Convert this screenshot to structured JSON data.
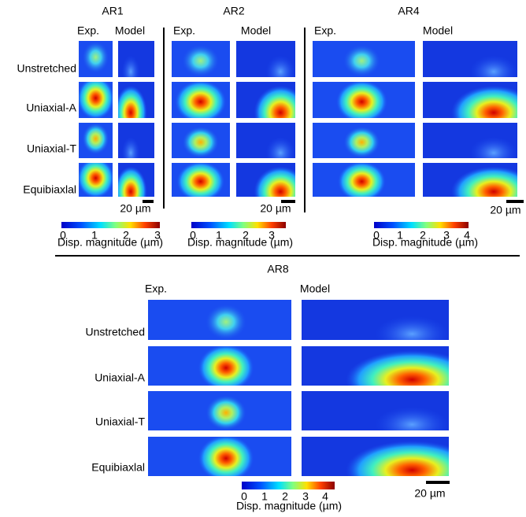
{
  "panels": [
    {
      "title": "AR1",
      "columns": [
        "Exp.",
        "Model"
      ],
      "rows": [
        "Unstretched",
        "Uniaxial-A",
        "Uniaxial-T",
        "Equibiaxlal"
      ],
      "scale_bar": "20 µm",
      "colorbar": {
        "ticks": [
          0,
          1,
          2,
          3
        ],
        "label": "Disp. magnitude (µm)"
      }
    },
    {
      "title": "AR2",
      "columns": [
        "Exp.",
        "Model"
      ],
      "scale_bar": "20 µm",
      "colorbar": {
        "ticks": [
          0,
          1,
          2,
          3
        ],
        "label": "Disp. magnitude (µm)"
      }
    },
    {
      "title": "AR4",
      "columns": [
        "Exp.",
        "Model"
      ],
      "scale_bar": "20 µm",
      "colorbar": {
        "ticks": [
          0,
          1,
          2,
          3,
          4
        ],
        "label": "Disp. magnitude (µm)"
      }
    },
    {
      "title": "AR8",
      "columns": [
        "Exp.",
        "Model"
      ],
      "rows": [
        "Unstretched",
        "Uniaxial-A",
        "Uniaxial-T",
        "Equibiaxlal"
      ],
      "scale_bar": "20 µm",
      "colorbar": {
        "ticks": [
          0,
          1,
          2,
          3,
          4
        ],
        "label": "Disp. magnitude (µm)"
      }
    }
  ]
}
